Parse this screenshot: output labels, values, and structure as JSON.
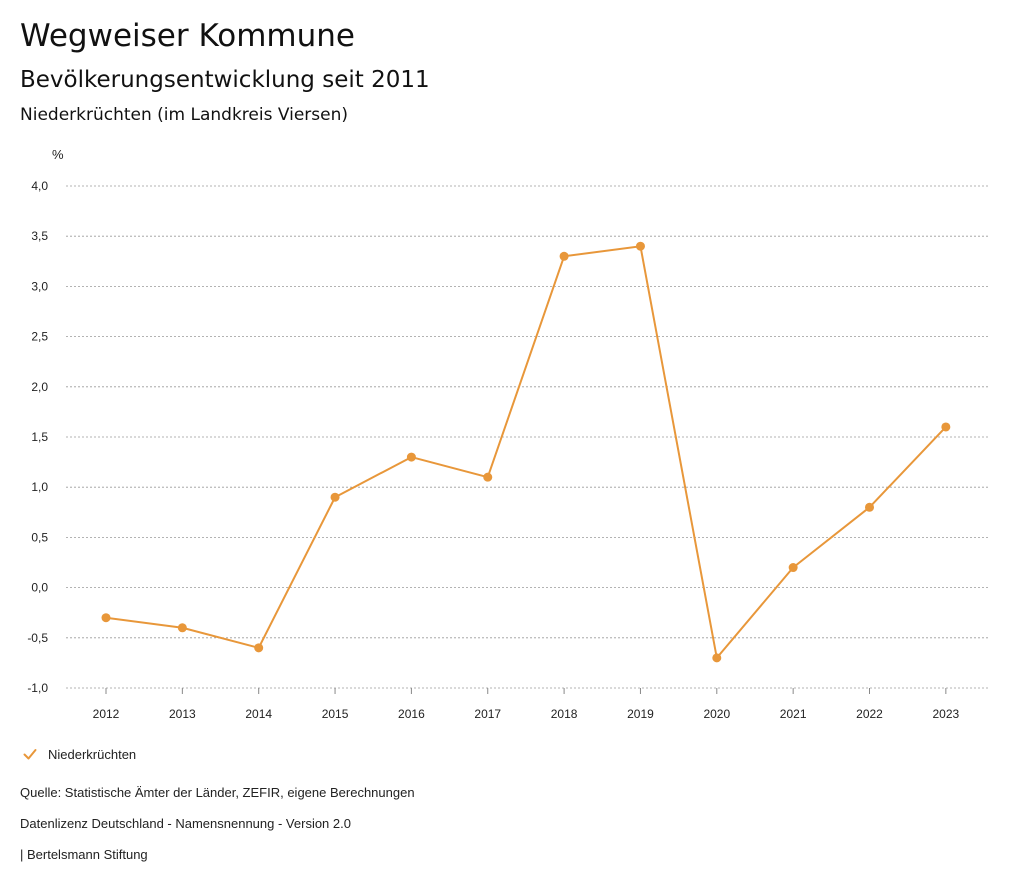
{
  "header": {
    "title": "Wegweiser Kommune",
    "subtitle": "Bevölkerungsentwicklung seit 2011",
    "region": "Niederkrüchten (im Landkreis Viersen)"
  },
  "chart_data": {
    "type": "line",
    "title": "Bevölkerungsentwicklung seit 2011",
    "ylabel": "%",
    "xlabel": "",
    "categories": [
      "2012",
      "2013",
      "2014",
      "2015",
      "2016",
      "2017",
      "2018",
      "2019",
      "2020",
      "2021",
      "2022",
      "2023"
    ],
    "ylim": [
      -1.0,
      4.0
    ],
    "yticks": [
      4.0,
      3.5,
      3.0,
      2.5,
      2.0,
      1.5,
      1.0,
      0.5,
      0.0,
      -0.5,
      -1.0
    ],
    "ytick_labels": [
      "4,0",
      "3,5",
      "3,0",
      "2,5",
      "2,0",
      "1,5",
      "1,0",
      "0,5",
      "0,0",
      "-0,5",
      "-1,0"
    ],
    "grid": true,
    "legend_position": "bottom-left",
    "series": [
      {
        "name": "Niederkrüchten",
        "color": "#e8973a",
        "values": [
          -0.3,
          -0.4,
          -0.6,
          0.9,
          1.3,
          1.1,
          3.3,
          3.4,
          -0.7,
          0.2,
          0.8,
          1.6
        ]
      }
    ]
  },
  "legend": {
    "label": "Niederkrüchten",
    "icon": "check-icon",
    "color": "#e8973a"
  },
  "footer": {
    "source": "Quelle: Statistische Ämter der Länder, ZEFIR, eigene Berechnungen",
    "license": "Datenlizenz Deutschland - Namensnennung - Version 2.0",
    "publisher": "| Bertelsmann Stiftung"
  }
}
